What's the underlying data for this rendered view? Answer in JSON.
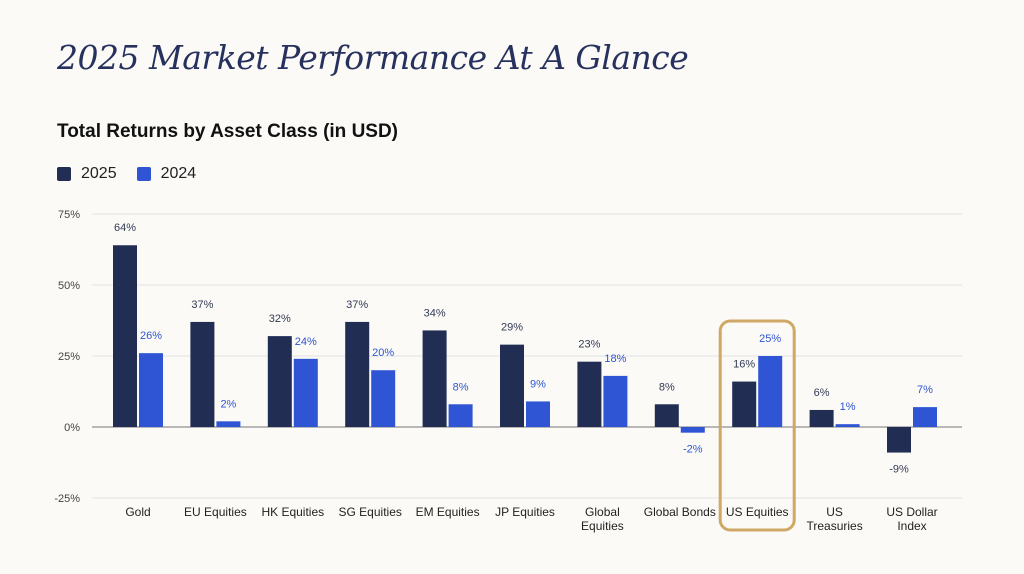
{
  "title": "2025 Market Performance At A Glance",
  "chart_data": {
    "type": "bar",
    "title": "Total Returns by Asset Class (in USD)",
    "xlabel": "",
    "ylabel": "",
    "ylim": [
      -25,
      75
    ],
    "yticks": [
      -25,
      0,
      25,
      50,
      75
    ],
    "ytick_labels": [
      "-25%",
      "0%",
      "25%",
      "50%",
      "75%"
    ],
    "grid": true,
    "legend_placement": "top-left",
    "categories": [
      [
        "Gold"
      ],
      [
        "EU Equities"
      ],
      [
        "HK Equities"
      ],
      [
        "SG Equities"
      ],
      [
        "EM Equities"
      ],
      [
        "JP Equities"
      ],
      [
        "Global",
        "Equities"
      ],
      [
        "Global Bonds"
      ],
      [
        "US Equities"
      ],
      [
        "US",
        "Treasuries"
      ],
      [
        "US Dollar",
        "Index"
      ]
    ],
    "series": [
      {
        "name": "2025",
        "color": "#222d54",
        "label_color": "#333a55",
        "values": [
          64,
          37,
          32,
          37,
          34,
          29,
          23,
          8,
          16,
          6,
          -9
        ]
      },
      {
        "name": "2024",
        "color": "#2f55d4",
        "label_color": "#2f55d4",
        "values": [
          26,
          2,
          24,
          20,
          8,
          9,
          18,
          -2,
          25,
          1,
          7
        ]
      }
    ],
    "highlight": {
      "category_index": 8,
      "color": "#d0a865"
    }
  }
}
